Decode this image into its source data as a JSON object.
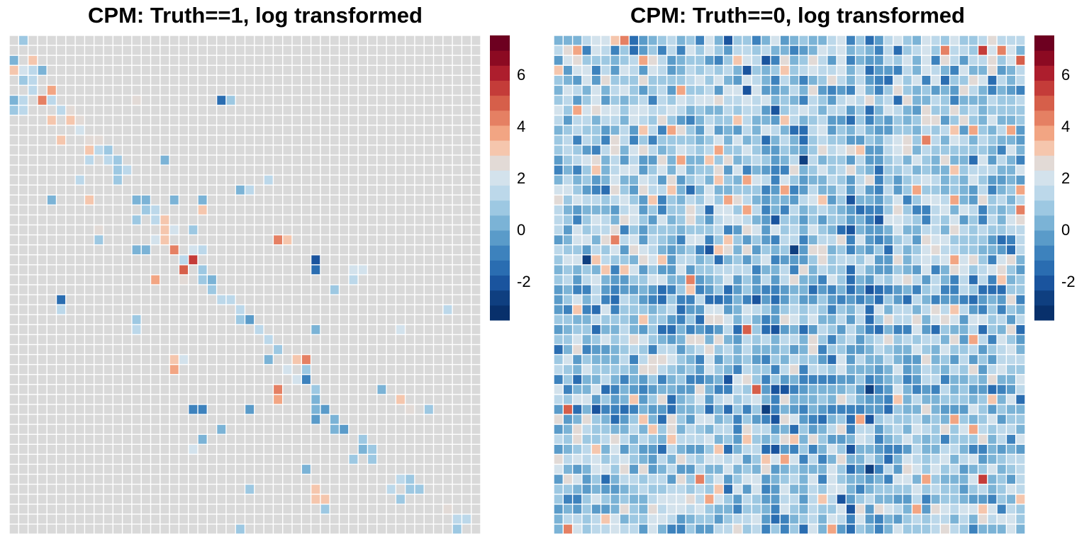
{
  "chart_data": [
    {
      "type": "heatmap",
      "title": "CPM: Truth==1, log transformed",
      "rows": 50,
      "cols": 50,
      "base_value": 1.9,
      "background_color": "#d9d9d9",
      "legend_breaks": [
        -2,
        0,
        2,
        4,
        6
      ],
      "legend_range": [
        -3.5,
        7.5
      ],
      "legend_placement": "right",
      "palette": [
        "#08306b",
        "#0f3f80",
        "#1a549e",
        "#2a6db1",
        "#3d82bd",
        "#5a9bc9",
        "#7bb3d6",
        "#9dc8e2",
        "#bcd8ea",
        "#d3e2ec",
        "#e2dad6",
        "#f5c6ad",
        "#f2a583",
        "#e58063",
        "#d65f4a",
        "#c43c39",
        "#ad1e2d",
        "#8c0a22",
        "#6d0020"
      ],
      "cells": [
        [
          1,
          2,
          0.6
        ],
        [
          3,
          1,
          0.5
        ],
        [
          3,
          3,
          3.4
        ],
        [
          4,
          1,
          3.0
        ],
        [
          4,
          2,
          2.0
        ],
        [
          4,
          3,
          1.2
        ],
        [
          4,
          4,
          0.3
        ],
        [
          5,
          2,
          1.0
        ],
        [
          5,
          3,
          1.3
        ],
        [
          6,
          3,
          1.5
        ],
        [
          6,
          5,
          3.8
        ],
        [
          7,
          1,
          0.2
        ],
        [
          7,
          2,
          1.2
        ],
        [
          7,
          4,
          4.6
        ],
        [
          7,
          5,
          1.5
        ],
        [
          7,
          23,
          -1.5
        ],
        [
          7,
          24,
          0.9
        ],
        [
          7,
          14,
          2.6
        ],
        [
          8,
          1,
          0.7
        ],
        [
          8,
          2,
          1.5
        ],
        [
          8,
          6,
          1.5
        ],
        [
          8,
          7,
          2.8
        ],
        [
          9,
          5,
          2.9
        ],
        [
          9,
          7,
          3.4
        ],
        [
          9,
          8,
          2.5
        ],
        [
          10,
          8,
          2.0
        ],
        [
          11,
          6,
          3.0
        ],
        [
          11,
          9,
          2.3
        ],
        [
          11,
          10,
          2.6
        ],
        [
          12,
          9,
          2.9
        ],
        [
          12,
          10,
          1.5
        ],
        [
          12,
          11,
          1.0
        ],
        [
          13,
          9,
          1.2
        ],
        [
          13,
          11,
          1.4
        ],
        [
          13,
          12,
          0.9
        ],
        [
          13,
          17,
          0.5
        ],
        [
          14,
          12,
          1.0
        ],
        [
          14,
          13,
          1.3
        ],
        [
          15,
          8,
          1.6
        ],
        [
          15,
          12,
          1.0
        ],
        [
          15,
          28,
          1.4
        ],
        [
          16,
          25,
          0.4
        ],
        [
          16,
          26,
          1.3
        ],
        [
          17,
          5,
          0.3
        ],
        [
          17,
          9,
          3.0
        ],
        [
          17,
          14,
          0.2
        ],
        [
          17,
          15,
          0.4
        ],
        [
          17,
          18,
          0.3
        ],
        [
          17,
          21,
          0.5
        ],
        [
          18,
          15,
          0.8
        ],
        [
          18,
          16,
          1.3
        ],
        [
          18,
          21,
          3.2
        ],
        [
          19,
          14,
          0.9
        ],
        [
          19,
          16,
          1.6
        ],
        [
          19,
          17,
          3.0
        ],
        [
          20,
          10,
          2.8
        ],
        [
          20,
          17,
          3.4
        ],
        [
          20,
          18,
          1.8
        ],
        [
          20,
          20,
          0.8
        ],
        [
          21,
          10,
          0.8
        ],
        [
          21,
          16,
          2.2
        ],
        [
          21,
          17,
          3.4
        ],
        [
          21,
          29,
          4.2
        ],
        [
          21,
          30,
          3.4
        ],
        [
          22,
          14,
          0.5
        ],
        [
          22,
          15,
          0.5
        ],
        [
          22,
          18,
          4.4
        ],
        [
          22,
          20,
          1.8
        ],
        [
          22,
          21,
          1.2
        ],
        [
          23,
          19,
          1.5
        ],
        [
          23,
          20,
          5.2
        ],
        [
          23,
          33,
          -2.0
        ],
        [
          24,
          19,
          4.8
        ],
        [
          24,
          21,
          0.6
        ],
        [
          24,
          33,
          -1.5
        ],
        [
          24,
          37,
          1.8
        ],
        [
          24,
          38,
          1.8
        ],
        [
          25,
          16,
          3.5
        ],
        [
          25,
          19,
          2.3
        ],
        [
          25,
          21,
          0.8
        ],
        [
          25,
          22,
          0.5
        ],
        [
          25,
          37,
          1.2
        ],
        [
          26,
          22,
          1.0
        ],
        [
          26,
          35,
          0.7
        ],
        [
          27,
          6,
          -1.2
        ],
        [
          27,
          23,
          1.2
        ],
        [
          27,
          24,
          1.5
        ],
        [
          28,
          6,
          1.2
        ],
        [
          28,
          25,
          1.3
        ],
        [
          28,
          47,
          1.6
        ],
        [
          29,
          14,
          1.0
        ],
        [
          29,
          25,
          0.8
        ],
        [
          29,
          26,
          -0.5
        ],
        [
          30,
          14,
          1.4
        ],
        [
          30,
          27,
          1.5
        ],
        [
          30,
          33,
          0.4
        ],
        [
          30,
          42,
          1.8
        ],
        [
          31,
          28,
          1.7
        ],
        [
          32,
          29,
          0.6
        ],
        [
          33,
          18,
          3.4
        ],
        [
          33,
          19,
          2.2
        ],
        [
          33,
          28,
          0.3
        ],
        [
          33,
          31,
          3.2
        ],
        [
          33,
          32,
          4.6
        ],
        [
          34,
          18,
          3.6
        ],
        [
          34,
          30,
          2.0
        ],
        [
          34,
          32,
          0.8
        ],
        [
          35,
          31,
          1.8
        ],
        [
          35,
          32,
          -0.8
        ],
        [
          36,
          29,
          4.2
        ],
        [
          36,
          33,
          1.0
        ],
        [
          36,
          40,
          0.3
        ],
        [
          37,
          29,
          4.0
        ],
        [
          37,
          33,
          0.2
        ],
        [
          37,
          42,
          3.4
        ],
        [
          38,
          20,
          -0.8
        ],
        [
          38,
          21,
          -1.0
        ],
        [
          38,
          26,
          -0.3
        ],
        [
          38,
          33,
          0.5
        ],
        [
          38,
          34,
          -0.4
        ],
        [
          38,
          43,
          2.8
        ],
        [
          38,
          45,
          0.8
        ],
        [
          39,
          33,
          -0.5
        ],
        [
          39,
          35,
          0.4
        ],
        [
          40,
          23,
          0.4
        ],
        [
          40,
          35,
          0.3
        ],
        [
          40,
          36,
          -0.5
        ],
        [
          41,
          21,
          0.3
        ],
        [
          41,
          38,
          0.6
        ],
        [
          42,
          20,
          1.8
        ],
        [
          42,
          38,
          0.5
        ],
        [
          42,
          39,
          0.8
        ],
        [
          43,
          37,
          0.9
        ],
        [
          43,
          39,
          0.9
        ],
        [
          44,
          32,
          0.1
        ],
        [
          45,
          42,
          1.2
        ],
        [
          45,
          43,
          1.0
        ],
        [
          46,
          26,
          0.6
        ],
        [
          46,
          33,
          3.2
        ],
        [
          46,
          41,
          1.2
        ],
        [
          46,
          43,
          0.8
        ],
        [
          46,
          44,
          0.8
        ],
        [
          47,
          33,
          3.0
        ],
        [
          47,
          34,
          3.0
        ],
        [
          47,
          42,
          1.1
        ],
        [
          48,
          34,
          0.7
        ],
        [
          48,
          47,
          2.6
        ],
        [
          49,
          48,
          1.3
        ],
        [
          49,
          49,
          1.6
        ],
        [
          50,
          25,
          0.9
        ],
        [
          50,
          48,
          1.1
        ]
      ]
    },
    {
      "type": "heatmap",
      "title": "CPM: Truth==0, log transformed",
      "rows": 50,
      "cols": 50,
      "seed": 20231,
      "mean_value": 0.9,
      "spread": 1.0,
      "dark_rows": [
        26,
        27,
        30,
        35,
        36,
        38,
        42
      ],
      "dark_cols": [
        23,
        24,
        27,
        32,
        34,
        35
      ],
      "legend_breaks": [
        -2,
        0,
        2,
        4,
        6
      ],
      "legend_range": [
        -3.5,
        7.5
      ],
      "legend_placement": "right",
      "palette": [
        "#08306b",
        "#0f3f80",
        "#1a549e",
        "#2a6db1",
        "#3d82bd",
        "#5a9bc9",
        "#7bb3d6",
        "#9dc8e2",
        "#bcd8ea",
        "#d3e2ec",
        "#e2dad6",
        "#f5c6ad",
        "#f2a583",
        "#e58063",
        "#d65f4a",
        "#c43c39",
        "#ad1e2d",
        "#8c0a22",
        "#6d0020"
      ]
    }
  ]
}
